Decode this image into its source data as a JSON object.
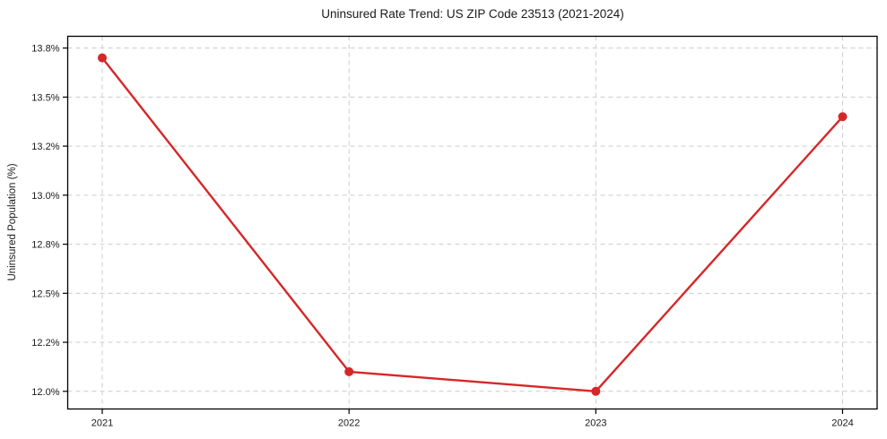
{
  "chart_data": {
    "type": "line",
    "title": "Uninsured Rate Trend: US ZIP Code 23513 (2021-2024)",
    "xlabel": "",
    "ylabel": "Uninsured Population (%)",
    "x": [
      2021,
      2022,
      2023,
      2024
    ],
    "xtick_labels": [
      "2021",
      "2022",
      "2023",
      "2024"
    ],
    "series": [
      {
        "values": [
          13.7,
          12.1,
          12.0,
          13.4
        ],
        "color": "#d62728",
        "marker": "circle",
        "marker_radius": 5,
        "line_width": 2.4
      }
    ],
    "ytick_values": [
      12.0,
      12.25,
      12.5,
      12.75,
      13.0,
      13.25,
      13.5,
      13.75
    ],
    "ytick_labels": [
      "12.0%",
      "12.2%",
      "12.5%",
      "12.8%",
      "13.0%",
      "13.2%",
      "13.5%",
      "13.8%"
    ],
    "ylim": [
      11.91,
      13.81
    ],
    "xlim": [
      2020.86,
      2024.14
    ],
    "grid": true,
    "grid_style": "dashed",
    "legend": "none",
    "colors": {
      "line": "#d62728",
      "grid": "#cccccc",
      "spine": "#000000",
      "text": "#1a1a1a",
      "background": "#ffffff"
    }
  }
}
